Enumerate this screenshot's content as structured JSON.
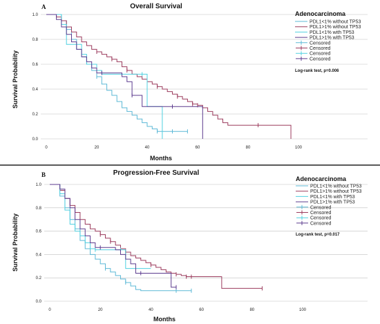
{
  "chart_data": [
    {
      "type": "line",
      "panel_letter": "A",
      "title": "Overall Survival",
      "xlabel": "Months",
      "ylabel": "Survival Probability",
      "xlim": [
        0,
        100
      ],
      "ylim": [
        0,
        1.0
      ],
      "x_ticks": [
        "0",
        "20",
        "40",
        "60",
        "80",
        "100"
      ],
      "y_ticks": [
        "0.0",
        "0.2",
        "0.4",
        "0.6",
        "0.8",
        "1.0"
      ],
      "grid": "horizontal",
      "legend_title": "Adenocarcinoma",
      "legend_position": "top-right",
      "legend_entries": [
        {
          "label": "PDL1<1% without TP53",
          "color": "#5bb8d6",
          "kind": "line"
        },
        {
          "label": "PDL1>1% without TP53",
          "color": "#9b3a5c",
          "kind": "line"
        },
        {
          "label": "PDL1<1% with TP53",
          "color": "#4fd0e0",
          "kind": "line"
        },
        {
          "label": "PDL1>1% with TP53",
          "color": "#5b3a8e",
          "kind": "line"
        },
        {
          "label": "Censored",
          "color": "#5bb8d6",
          "kind": "censor"
        },
        {
          "label": "Censored",
          "color": "#9b3a5c",
          "kind": "censor"
        },
        {
          "label": "Censored",
          "color": "#4fd0e0",
          "kind": "censor"
        },
        {
          "label": "Censored",
          "color": "#5b3a8e",
          "kind": "censor"
        }
      ],
      "annotation": "Log-rank test, p=0.006",
      "series": [
        {
          "color": "#5bb8d6",
          "x": [
            0,
            6,
            8,
            10,
            12,
            14,
            16,
            18,
            20,
            22,
            24,
            26,
            28,
            30,
            32,
            34,
            36,
            38,
            40,
            42,
            44,
            56
          ],
          "y": [
            1.0,
            0.95,
            0.88,
            0.8,
            0.72,
            0.66,
            0.6,
            0.55,
            0.5,
            0.44,
            0.39,
            0.35,
            0.3,
            0.25,
            0.22,
            0.19,
            0.16,
            0.13,
            0.1,
            0.08,
            0.06,
            0.06
          ],
          "censored_x": [
            20,
            44,
            50,
            56
          ]
        },
        {
          "color": "#9b3a5c",
          "x": [
            0,
            4,
            6,
            8,
            10,
            12,
            14,
            16,
            18,
            20,
            22,
            24,
            26,
            28,
            30,
            32,
            34,
            36,
            38,
            40,
            42,
            44,
            46,
            48,
            50,
            52,
            54,
            56,
            58,
            60,
            62,
            64,
            66,
            68,
            70,
            72,
            74,
            97
          ],
          "y": [
            1.0,
            0.98,
            0.95,
            0.9,
            0.86,
            0.82,
            0.78,
            0.75,
            0.72,
            0.7,
            0.68,
            0.66,
            0.64,
            0.62,
            0.58,
            0.55,
            0.52,
            0.5,
            0.48,
            0.46,
            0.44,
            0.42,
            0.4,
            0.38,
            0.36,
            0.34,
            0.32,
            0.3,
            0.28,
            0.27,
            0.25,
            0.22,
            0.19,
            0.16,
            0.13,
            0.11,
            0.11,
            0.0
          ],
          "censored_x": [
            20,
            26,
            32,
            44,
            52,
            58,
            60,
            84
          ]
        },
        {
          "color": "#4fd0e0",
          "x": [
            0,
            6,
            8,
            10,
            12,
            14,
            16,
            18,
            20,
            22,
            24,
            26,
            28,
            30,
            32,
            38,
            40,
            42,
            46
          ],
          "y": [
            1.0,
            0.92,
            0.76,
            0.76,
            0.76,
            0.68,
            0.6,
            0.6,
            0.55,
            0.52,
            0.52,
            0.52,
            0.52,
            0.52,
            0.52,
            0.52,
            0.26,
            0.26,
            0.0
          ],
          "censored_x": [
            38
          ]
        },
        {
          "color": "#5b3a8e",
          "x": [
            0,
            4,
            6,
            8,
            10,
            12,
            14,
            16,
            18,
            20,
            22,
            24,
            26,
            28,
            30,
            32,
            34,
            36,
            38,
            40,
            44,
            50,
            56,
            58,
            62
          ],
          "y": [
            1.0,
            0.96,
            0.9,
            0.84,
            0.78,
            0.72,
            0.66,
            0.62,
            0.57,
            0.53,
            0.53,
            0.53,
            0.53,
            0.53,
            0.5,
            0.46,
            0.35,
            0.35,
            0.26,
            0.26,
            0.26,
            0.26,
            0.26,
            0.26,
            0.0
          ],
          "censored_x": [
            22,
            34,
            50
          ]
        }
      ]
    },
    {
      "type": "line",
      "panel_letter": "B",
      "title": "Progression-Free Survival",
      "xlabel": "Months",
      "ylabel": "Survival Probability",
      "xlim": [
        0,
        100
      ],
      "ylim": [
        0,
        1.0
      ],
      "x_ticks": [
        "0",
        "20",
        "40",
        "60",
        "80",
        "100"
      ],
      "y_ticks": [
        "0.0",
        "0.2",
        "0.4",
        "0.6",
        "0.8",
        "1.0"
      ],
      "grid": "horizontal",
      "legend_title": "Adenocarcinoma",
      "legend_position": "top-right",
      "legend_entries": [
        {
          "label": "PDL1<1% without TP53",
          "color": "#5bb8d6",
          "kind": "line"
        },
        {
          "label": "PDL1>1% without TP53",
          "color": "#9b3a5c",
          "kind": "line"
        },
        {
          "label": "PDL1<1% with TP53",
          "color": "#4fd0e0",
          "kind": "line"
        },
        {
          "label": "PDL1>1% with TP53",
          "color": "#5b3a8e",
          "kind": "line"
        },
        {
          "label": "Censored",
          "color": "#5bb8d6",
          "kind": "censor"
        },
        {
          "label": "Censored",
          "color": "#9b3a5c",
          "kind": "censor"
        },
        {
          "label": "Censored",
          "color": "#4fd0e0",
          "kind": "censor"
        },
        {
          "label": "Censored",
          "color": "#5b3a8e",
          "kind": "censor"
        }
      ],
      "annotation": "Log-rank test, p=0.017",
      "series": [
        {
          "color": "#5bb8d6",
          "x": [
            0,
            4,
            6,
            8,
            10,
            12,
            14,
            16,
            18,
            20,
            22,
            24,
            26,
            28,
            30,
            32,
            34,
            36,
            56
          ],
          "y": [
            1.0,
            0.9,
            0.8,
            0.7,
            0.62,
            0.52,
            0.45,
            0.4,
            0.36,
            0.32,
            0.28,
            0.25,
            0.22,
            0.19,
            0.16,
            0.13,
            0.1,
            0.09,
            0.09
          ],
          "censored_x": [
            22,
            30,
            50,
            56
          ]
        },
        {
          "color": "#9b3a5c",
          "x": [
            0,
            4,
            6,
            8,
            10,
            12,
            14,
            16,
            18,
            20,
            22,
            24,
            26,
            28,
            30,
            32,
            34,
            36,
            38,
            40,
            42,
            44,
            46,
            48,
            50,
            52,
            54,
            56,
            58,
            68,
            84
          ],
          "y": [
            1.0,
            0.95,
            0.88,
            0.82,
            0.76,
            0.7,
            0.66,
            0.62,
            0.6,
            0.57,
            0.54,
            0.51,
            0.48,
            0.45,
            0.42,
            0.39,
            0.37,
            0.35,
            0.33,
            0.31,
            0.29,
            0.27,
            0.25,
            0.24,
            0.23,
            0.22,
            0.21,
            0.21,
            0.21,
            0.11,
            0.11
          ],
          "censored_x": [
            20,
            24,
            30,
            40,
            50,
            54,
            56,
            84
          ]
        },
        {
          "color": "#4fd0e0",
          "x": [
            0,
            4,
            6,
            8,
            10,
            12,
            14,
            16,
            18,
            20,
            30,
            34,
            36,
            40
          ],
          "y": [
            1.0,
            0.92,
            0.78,
            0.66,
            0.6,
            0.56,
            0.5,
            0.45,
            0.44,
            0.44,
            0.28,
            0.28,
            0.28,
            0.28
          ],
          "censored_x": [
            18,
            28
          ]
        },
        {
          "color": "#5b3a8e",
          "x": [
            0,
            4,
            6,
            8,
            10,
            12,
            14,
            16,
            18,
            20,
            22,
            24,
            26,
            28,
            30,
            32,
            34,
            36,
            38,
            40,
            42,
            44,
            46,
            48,
            50
          ],
          "y": [
            1.0,
            0.96,
            0.88,
            0.8,
            0.7,
            0.62,
            0.56,
            0.5,
            0.46,
            0.46,
            0.46,
            0.46,
            0.44,
            0.4,
            0.36,
            0.32,
            0.24,
            0.24,
            0.24,
            0.24,
            0.24,
            0.24,
            0.24,
            0.12,
            0.12
          ],
          "censored_x": [
            20,
            36,
            50
          ]
        }
      ]
    }
  ]
}
